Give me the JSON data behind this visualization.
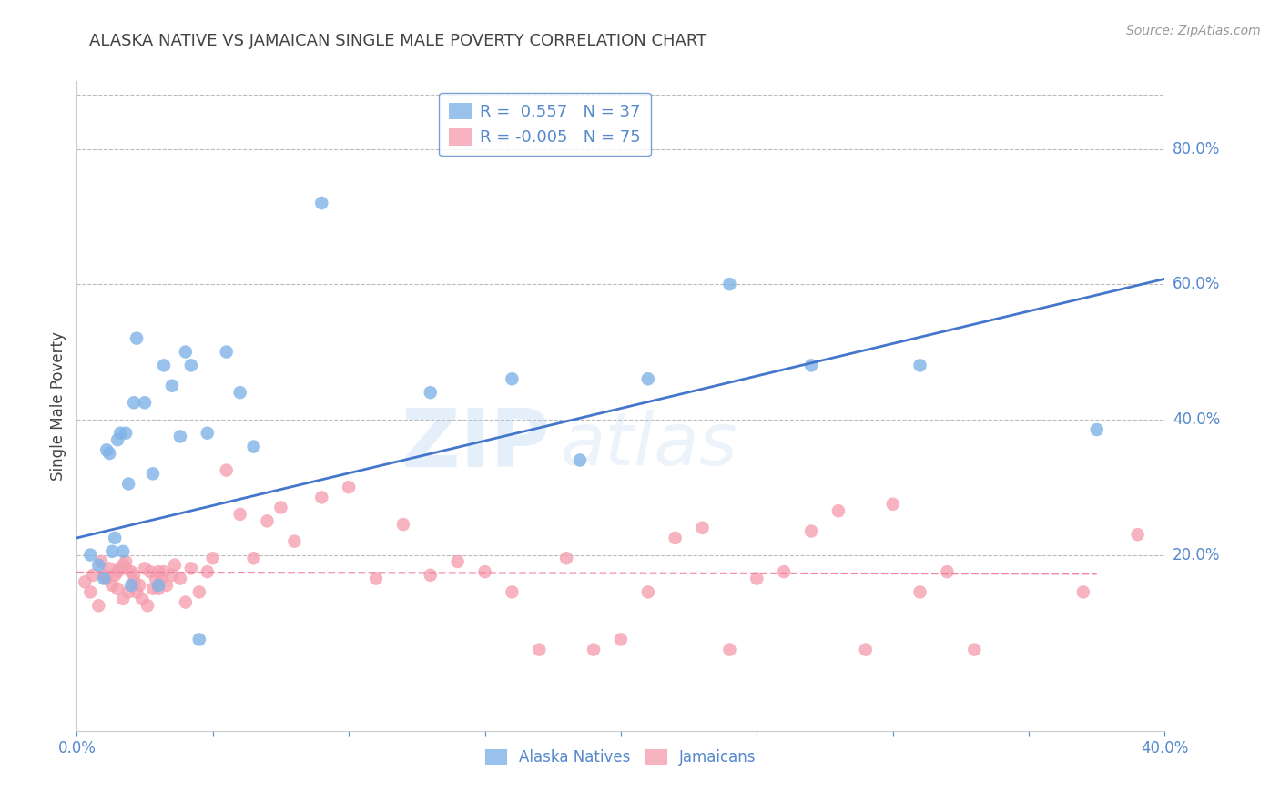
{
  "title": "ALASKA NATIVE VS JAMAICAN SINGLE MALE POVERTY CORRELATION CHART",
  "source": "Source: ZipAtlas.com",
  "ylabel": "Single Male Poverty",
  "ytick_labels": [
    "20.0%",
    "40.0%",
    "60.0%",
    "80.0%"
  ],
  "ytick_values": [
    0.2,
    0.4,
    0.6,
    0.8
  ],
  "xlim": [
    0.0,
    0.4
  ],
  "ylim": [
    -0.06,
    0.9
  ],
  "watermark_line1": "ZIP",
  "watermark_line2": "atlas",
  "blue_color": "#7EB3E8",
  "pink_color": "#F5A0B0",
  "trendline_blue_color": "#4477CC",
  "trendline_pink_color": "#EE7799",
  "alaska_x": [
    0.005,
    0.008,
    0.01,
    0.011,
    0.012,
    0.013,
    0.014,
    0.015,
    0.016,
    0.017,
    0.018,
    0.019,
    0.02,
    0.021,
    0.022,
    0.025,
    0.028,
    0.03,
    0.032,
    0.035,
    0.038,
    0.04,
    0.042,
    0.045,
    0.048,
    0.055,
    0.06,
    0.065,
    0.09,
    0.13,
    0.16,
    0.185,
    0.21,
    0.24,
    0.27,
    0.31,
    0.375
  ],
  "alaska_y": [
    0.2,
    0.185,
    0.165,
    0.355,
    0.35,
    0.205,
    0.225,
    0.37,
    0.38,
    0.205,
    0.38,
    0.305,
    0.155,
    0.425,
    0.52,
    0.425,
    0.32,
    0.155,
    0.48,
    0.45,
    0.375,
    0.5,
    0.48,
    0.075,
    0.38,
    0.5,
    0.44,
    0.36,
    0.72,
    0.44,
    0.46,
    0.34,
    0.46,
    0.6,
    0.48,
    0.48,
    0.385
  ],
  "jamaican_x": [
    0.003,
    0.005,
    0.006,
    0.008,
    0.009,
    0.01,
    0.011,
    0.012,
    0.013,
    0.014,
    0.015,
    0.015,
    0.016,
    0.017,
    0.017,
    0.018,
    0.018,
    0.019,
    0.02,
    0.021,
    0.021,
    0.022,
    0.023,
    0.024,
    0.025,
    0.026,
    0.027,
    0.028,
    0.029,
    0.03,
    0.03,
    0.031,
    0.032,
    0.033,
    0.035,
    0.036,
    0.038,
    0.04,
    0.042,
    0.045,
    0.048,
    0.05,
    0.055,
    0.06,
    0.065,
    0.07,
    0.075,
    0.08,
    0.09,
    0.1,
    0.11,
    0.12,
    0.13,
    0.14,
    0.15,
    0.16,
    0.17,
    0.18,
    0.19,
    0.2,
    0.21,
    0.22,
    0.23,
    0.24,
    0.25,
    0.26,
    0.27,
    0.28,
    0.29,
    0.3,
    0.31,
    0.32,
    0.33,
    0.37,
    0.39
  ],
  "jamaican_y": [
    0.16,
    0.145,
    0.17,
    0.125,
    0.19,
    0.17,
    0.165,
    0.18,
    0.155,
    0.17,
    0.15,
    0.175,
    0.18,
    0.135,
    0.185,
    0.19,
    0.18,
    0.145,
    0.175,
    0.16,
    0.17,
    0.145,
    0.155,
    0.135,
    0.18,
    0.125,
    0.175,
    0.15,
    0.165,
    0.15,
    0.175,
    0.165,
    0.175,
    0.155,
    0.17,
    0.185,
    0.165,
    0.13,
    0.18,
    0.145,
    0.175,
    0.195,
    0.325,
    0.26,
    0.195,
    0.25,
    0.27,
    0.22,
    0.285,
    0.3,
    0.165,
    0.245,
    0.17,
    0.19,
    0.175,
    0.145,
    0.06,
    0.195,
    0.06,
    0.075,
    0.145,
    0.225,
    0.24,
    0.06,
    0.165,
    0.175,
    0.235,
    0.265,
    0.06,
    0.275,
    0.145,
    0.175,
    0.06,
    0.145,
    0.23
  ],
  "blue_trendline_x": [
    0.0,
    0.4
  ],
  "blue_trendline_y": [
    0.225,
    0.608
  ],
  "pink_trendline_x": [
    0.0,
    0.375
  ],
  "pink_trendline_y": [
    0.174,
    0.172
  ],
  "background_color": "#ffffff",
  "grid_color": "#bbbbbb",
  "title_color": "#444444",
  "source_color": "#999999",
  "tick_color": "#5588CC",
  "legend_border_color": "#5588CC",
  "legend_text_color": "#5588CC"
}
